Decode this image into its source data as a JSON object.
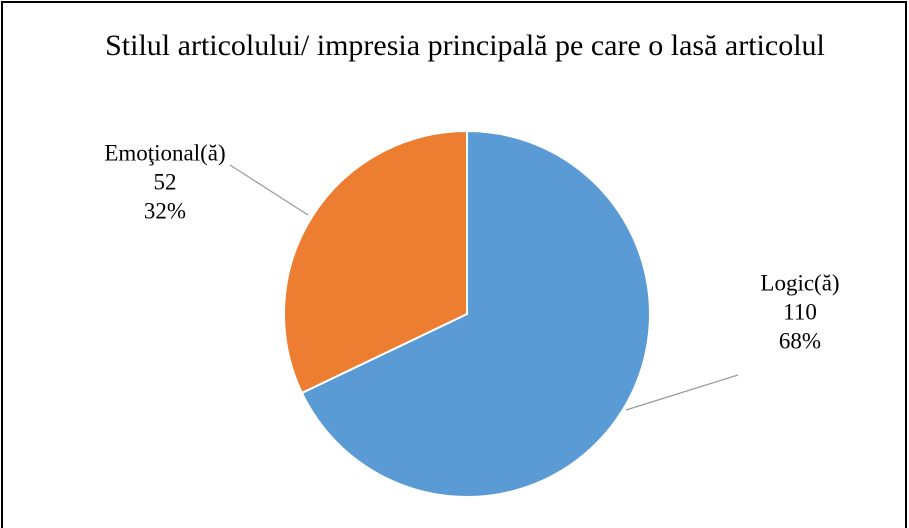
{
  "chart_data": {
    "type": "pie",
    "title": "Stilul articolului/ impresia principală pe care o lasă articolul",
    "categories": [
      "Logic(ă)",
      "Emoţional(ă)"
    ],
    "values": [
      110,
      52
    ],
    "percents": [
      {
        "value": 68,
        "label": "68%"
      },
      {
        "value": 32,
        "label": "32%"
      }
    ],
    "colors": [
      "#5b9bd5",
      "#ed7d31"
    ]
  }
}
